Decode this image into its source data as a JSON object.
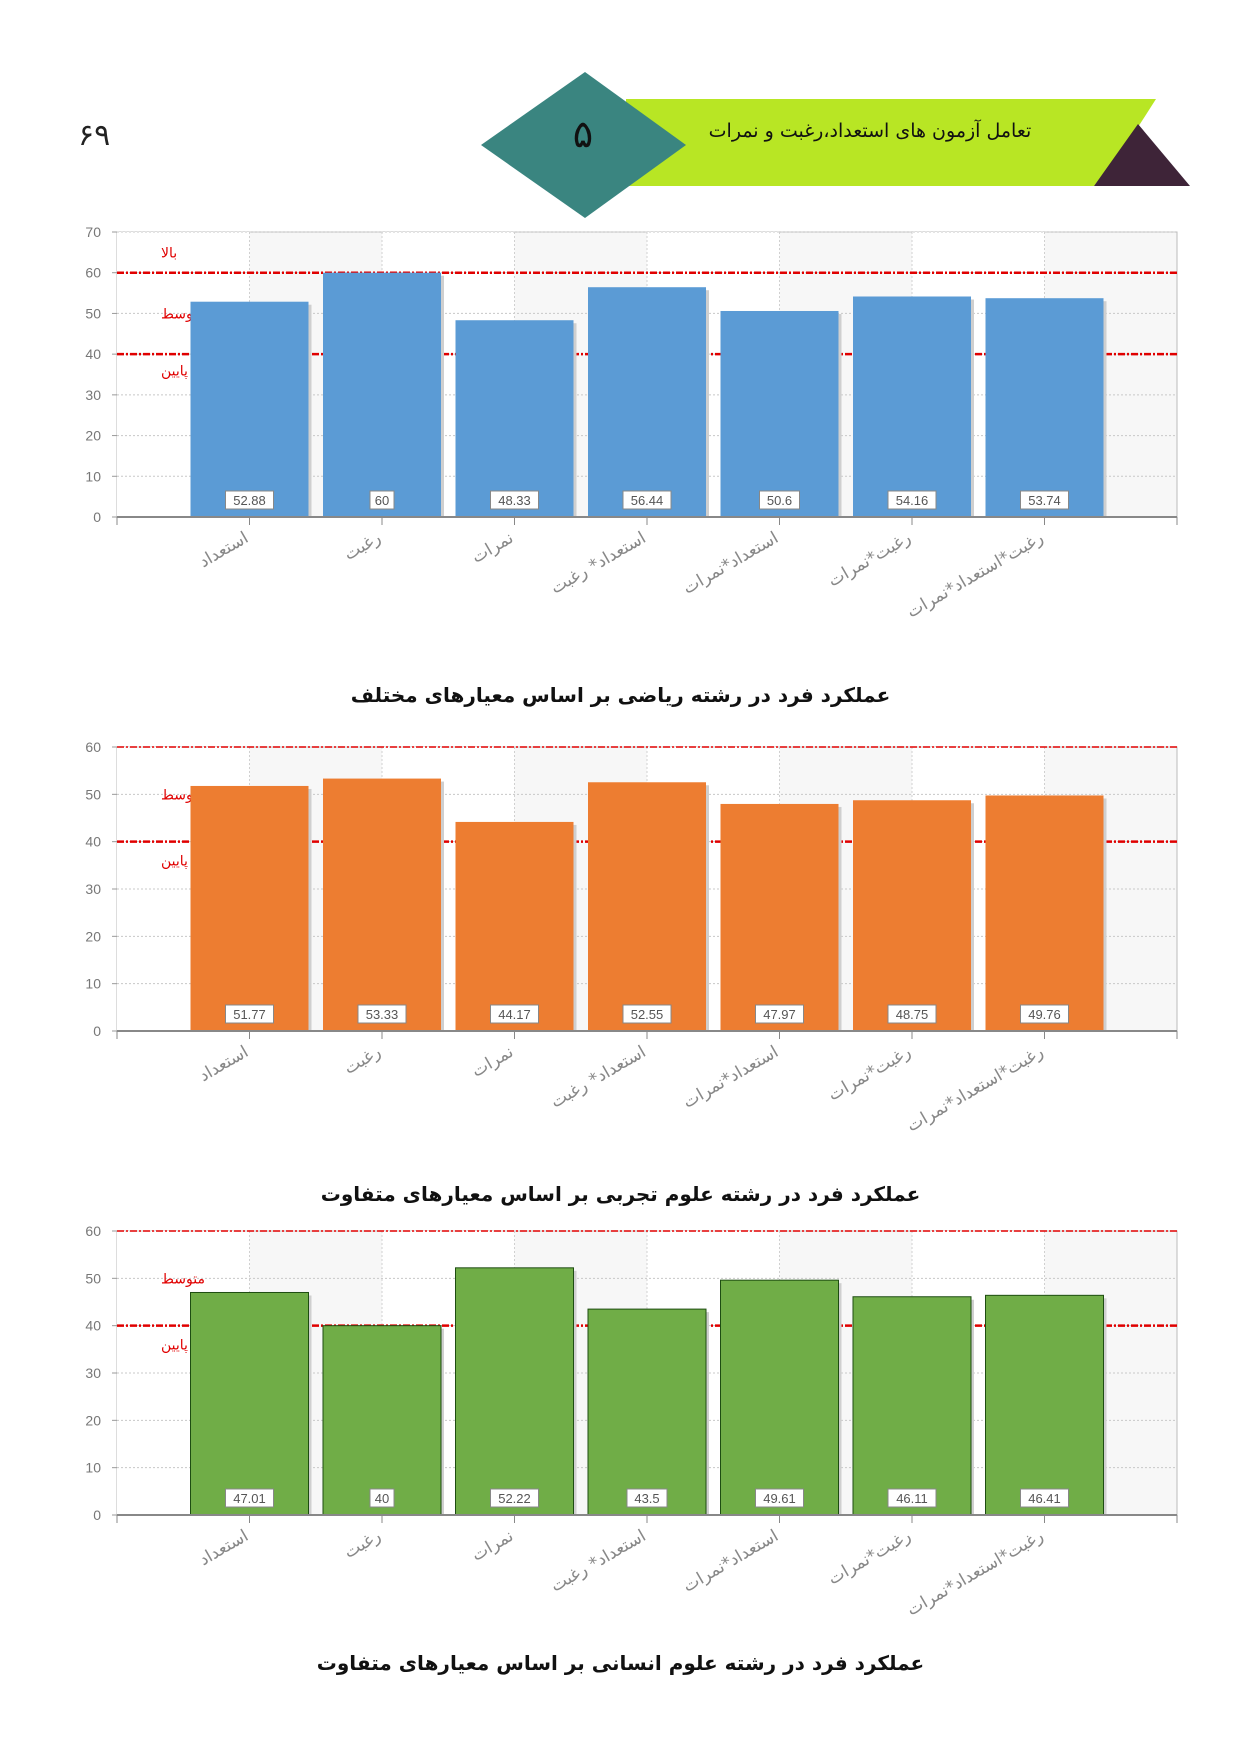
{
  "header": {
    "page_number": "۶۹",
    "chapter_number": "۵",
    "title": "تعامل آزمون های استعداد،رغبت و نمرات"
  },
  "colors": {
    "header_green": "#b8e624",
    "header_teal": "#3a8580",
    "header_dark": "#3e2438",
    "reference": "#e00000",
    "grid": "#cccccc"
  },
  "chart_data": [
    {
      "type": "bar",
      "title": "عملکرد فرد در رشته ریاضی بر اساس معیارهای مختلف",
      "categories": [
        "استعداد",
        "رغبت",
        "نمرات",
        "استعداد* رغبت",
        "استعداد*نمرات",
        "رغبت*نمرات",
        "رغبت*استعداد*نمرات"
      ],
      "values": [
        52.88,
        60,
        48.33,
        56.44,
        50.6,
        54.16,
        53.74
      ],
      "value_labels": [
        "52.88",
        "60",
        "48.33",
        "56.44",
        "50.6",
        "54.16",
        "53.74"
      ],
      "ylim": [
        0,
        70
      ],
      "yticks": [
        "0",
        "10",
        "20",
        "30",
        "40",
        "50",
        "60",
        "70"
      ],
      "color": "#5b9bd5",
      "border": "none",
      "reference_lines": [
        60,
        40
      ],
      "zone_labels": [
        {
          "text": "بالا",
          "y": 65
        },
        {
          "text": "متوسط",
          "y": 50
        },
        {
          "text": "پایین",
          "y": 36
        }
      ],
      "grid": true
    },
    {
      "type": "bar",
      "title": "عملکرد فرد در رشته علوم تجربی بر اساس معیارهای متفاوت",
      "categories": [
        "استعداد",
        "رغبت",
        "نمرات",
        "استعداد* رغبت",
        "استعداد*نمرات",
        "رغبت*نمرات",
        "رغبت*استعداد*نمرات"
      ],
      "values": [
        51.77,
        53.33,
        44.17,
        52.55,
        47.97,
        48.75,
        49.76
      ],
      "value_labels": [
        "51.77",
        "53.33",
        "44.17",
        "52.55",
        "47.97",
        "48.75",
        "49.76"
      ],
      "ylim": [
        0,
        60
      ],
      "yticks": [
        "0",
        "10",
        "20",
        "30",
        "40",
        "50",
        "60"
      ],
      "color": "#ed7d31",
      "border": "none",
      "reference_lines": [
        60,
        40
      ],
      "zone_labels": [
        {
          "text": "متوسط",
          "y": 50
        },
        {
          "text": "پایین",
          "y": 36
        }
      ],
      "grid": true
    },
    {
      "type": "bar",
      "title": "عملکرد فرد در رشته علوم انسانی بر اساس معیارهای متفاوت",
      "categories": [
        "استعداد",
        "رغبت",
        "نمرات",
        "استعداد* رغبت",
        "استعداد*نمرات",
        "رغبت*نمرات",
        "رغبت*استعداد*نمرات"
      ],
      "values": [
        47.01,
        40,
        52.22,
        43.5,
        49.61,
        46.11,
        46.41
      ],
      "value_labels": [
        "47.01",
        "40",
        "52.22",
        "43.5",
        "49.61",
        "46.11",
        "46.41"
      ],
      "ylim": [
        0,
        60
      ],
      "yticks": [
        "0",
        "10",
        "20",
        "30",
        "40",
        "50",
        "60"
      ],
      "color": "#70ad47",
      "border": "#1e4d12",
      "reference_lines": [
        60,
        40
      ],
      "zone_labels": [
        {
          "text": "متوسط",
          "y": 50
        },
        {
          "text": "پایین",
          "y": 36
        }
      ],
      "grid": true
    }
  ]
}
